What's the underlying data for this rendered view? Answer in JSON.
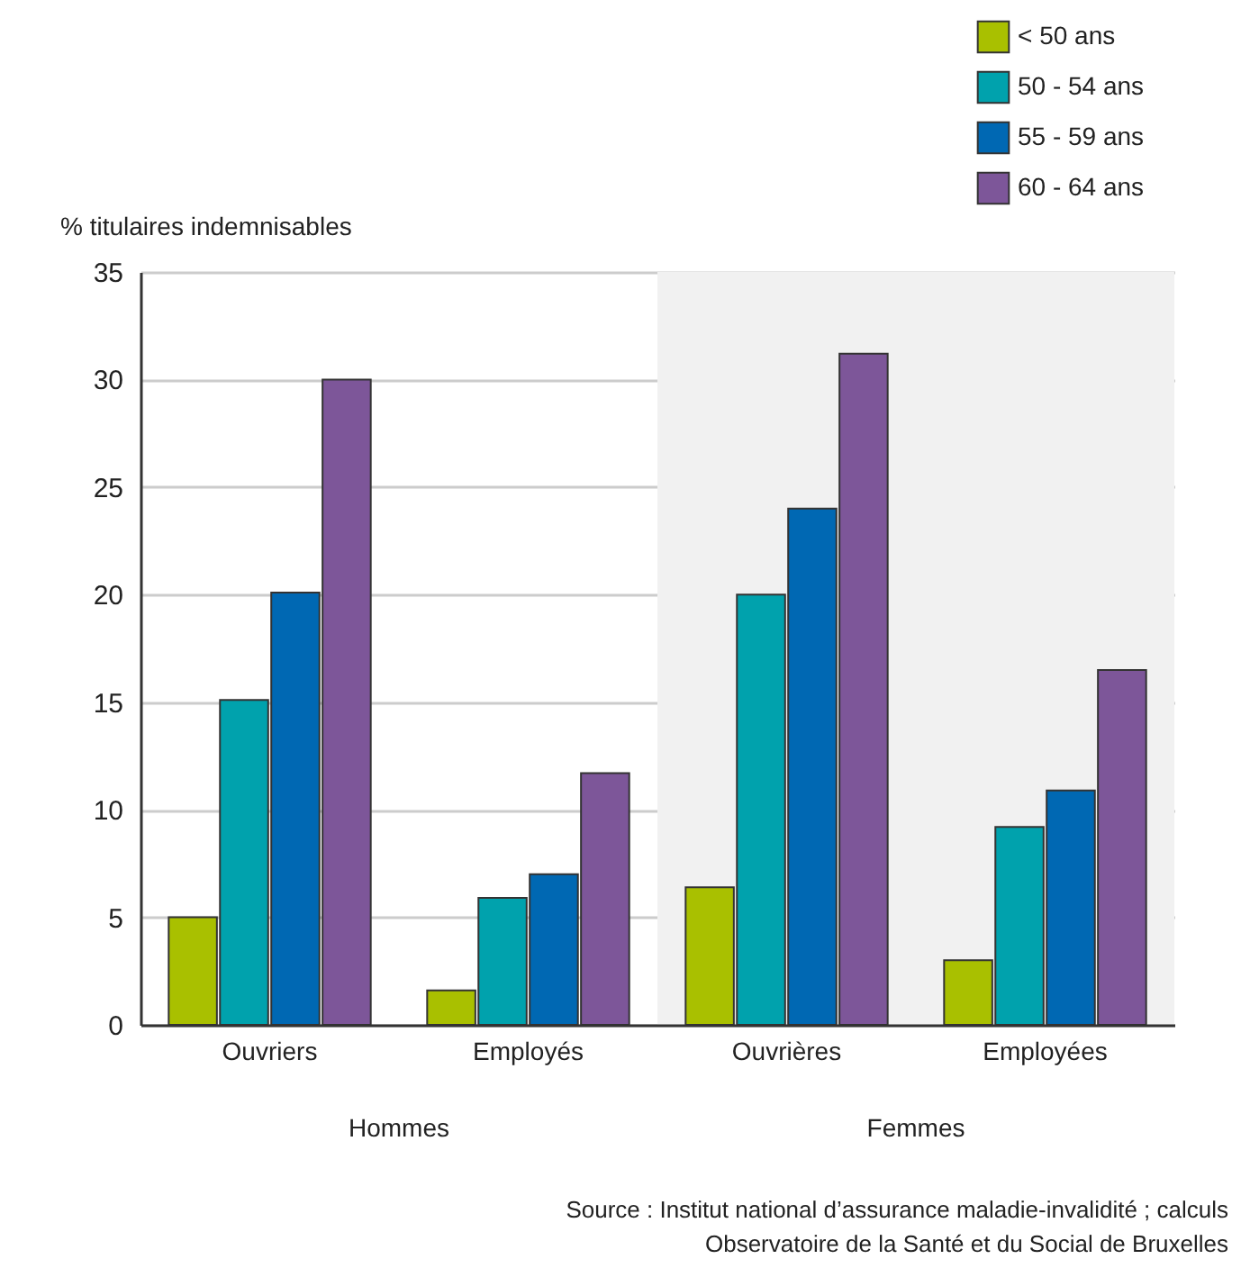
{
  "chart_data": {
    "type": "bar",
    "ylabel": "% titulaires indemnisables",
    "categories": [
      "Ouvriers",
      "Employés",
      "Ouvrières",
      "Employées"
    ],
    "series": [
      {
        "name": "< 50 ans",
        "color": "#a9c000",
        "values": [
          5.0,
          1.6,
          6.4,
          3.0
        ]
      },
      {
        "name": "50 - 54 ans",
        "color": "#00a2ad",
        "values": [
          15.1,
          5.9,
          20.0,
          9.2
        ]
      },
      {
        "name": "55 - 59 ans",
        "color": "#0068b3",
        "values": [
          20.1,
          7.0,
          24.0,
          10.9
        ]
      },
      {
        "name": "60 - 64 ans",
        "color": "#7d5699",
        "values": [
          30.0,
          11.7,
          31.2,
          16.5
        ]
      }
    ],
    "ylim": [
      0,
      35
    ],
    "yticks": [
      0,
      5,
      10,
      15,
      20,
      25,
      30,
      35
    ],
    "grid": "y",
    "legend": "top right",
    "bands": [
      {
        "axis": "x",
        "from": "Ouvrières",
        "to": "Employées",
        "color": "#f1f1f1"
      }
    ],
    "annotations": [
      "Hommes",
      "Femmes",
      "Source : Institut national d’assurance maladie-invalidité ; calculs Observatoire de la Santé et du Social de Bruxelles"
    ]
  }
}
